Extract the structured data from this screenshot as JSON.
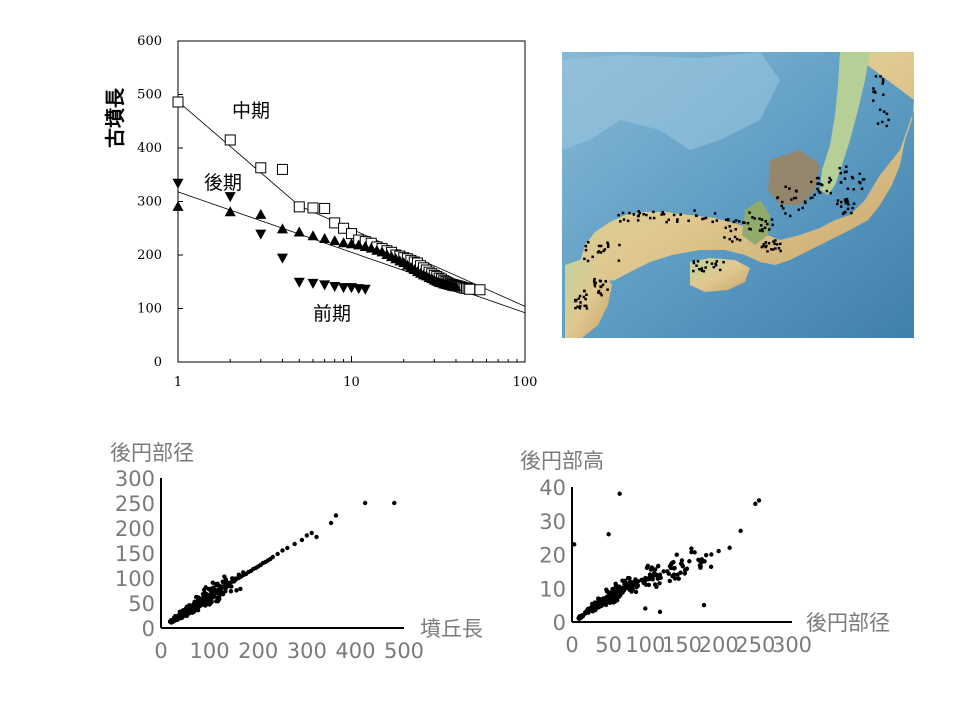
{
  "chart_data": [
    {
      "type": "scatter",
      "ylabel": "古墳長",
      "xscale": "log",
      "xlim": [
        1,
        100
      ],
      "ylim": [
        0,
        600
      ],
      "xticks": [
        "1",
        "10",
        "100"
      ],
      "yticks": [
        "0",
        "100",
        "200",
        "300",
        "400",
        "500",
        "600"
      ],
      "series": [
        {
          "name": "中期",
          "marker": "open-square",
          "x": [
            1,
            2,
            3,
            4,
            5,
            6,
            7,
            8,
            9,
            10,
            11,
            12,
            13,
            14,
            15,
            16,
            17,
            18,
            19,
            20,
            21,
            22,
            23,
            24,
            25,
            26,
            27,
            28,
            29,
            30,
            31,
            32,
            33,
            34,
            35,
            36,
            37,
            38,
            39,
            40,
            41,
            42,
            43,
            44,
            45,
            46,
            47,
            48,
            55
          ],
          "y": [
            486,
            415,
            363,
            360,
            290,
            288,
            287,
            260,
            250,
            240,
            228,
            225,
            222,
            215,
            212,
            208,
            205,
            200,
            198,
            195,
            193,
            190,
            187,
            185,
            180,
            176,
            172,
            168,
            165,
            162,
            160,
            157,
            155,
            152,
            150,
            148,
            146,
            145,
            144,
            143,
            142,
            141,
            140,
            139,
            138,
            138,
            137,
            136,
            135
          ],
          "trend": {
            "x": [
              1,
              5,
              100
            ],
            "y": [
              487,
              292,
              104
            ]
          }
        },
        {
          "name": "後期",
          "marker": "filled-triangle-up",
          "x": [
            1,
            2,
            3,
            4,
            5,
            6,
            7,
            8,
            9,
            10,
            11,
            12,
            13,
            14,
            15,
            16,
            17,
            18,
            19,
            20,
            21,
            22,
            23,
            24,
            25,
            26,
            27,
            28,
            29,
            30,
            31,
            32,
            33,
            34,
            35,
            36,
            37,
            38,
            39,
            40
          ],
          "y": [
            290,
            280,
            275,
            248,
            242,
            235,
            230,
            226,
            222,
            220,
            218,
            215,
            212,
            208,
            205,
            200,
            196,
            192,
            188,
            185,
            180,
            176,
            172,
            168,
            165,
            162,
            160,
            157,
            155,
            152,
            150,
            148,
            147,
            145,
            144,
            143,
            142,
            141,
            140,
            140
          ],
          "trend": {
            "x": [
              1,
              100
            ],
            "y": [
              318,
              92
            ]
          }
        },
        {
          "name": "前期",
          "marker": "filled-triangle-down",
          "x": [
            1,
            2,
            3,
            4,
            5,
            6,
            7,
            8,
            9,
            10,
            11,
            12
          ],
          "y": [
            335,
            310,
            240,
            195,
            150,
            148,
            145,
            142,
            140,
            140,
            138,
            137
          ]
        }
      ]
    },
    {
      "type": "scatter",
      "xlabel": "墳丘長",
      "ylabel": "後円部径",
      "xlim": [
        0,
        500
      ],
      "ylim": [
        0,
        300
      ],
      "xticks": [
        "0",
        "100",
        "200",
        "300",
        "400",
        "500"
      ],
      "yticks": [
        "0",
        "50",
        "100",
        "150",
        "200",
        "250",
        "300"
      ],
      "series": [
        {
          "x": [
            20,
            25,
            30,
            32,
            35,
            38,
            40,
            42,
            45,
            48,
            50,
            52,
            55,
            58,
            60,
            62,
            65,
            68,
            70,
            72,
            75,
            78,
            80,
            82,
            85,
            88,
            90,
            92,
            95,
            98,
            100,
            103,
            105,
            108,
            110,
            112,
            115,
            118,
            120,
            125,
            130,
            135,
            140,
            145,
            150,
            155,
            160,
            165,
            170,
            175,
            180,
            185,
            190,
            195,
            200,
            205,
            210,
            215,
            220,
            225,
            230,
            240,
            250,
            260,
            275,
            290,
            300,
            310,
            320,
            350,
            360,
            420,
            480
          ],
          "y": [
            12,
            15,
            18,
            20,
            22,
            24,
            25,
            27,
            28,
            30,
            32,
            33,
            35,
            37,
            38,
            40,
            42,
            44,
            45,
            46,
            48,
            50,
            52,
            53,
            55,
            57,
            58,
            60,
            62,
            63,
            65,
            67,
            68,
            70,
            72,
            73,
            75,
            76,
            78,
            80,
            83,
            86,
            90,
            92,
            95,
            98,
            100,
            103,
            106,
            108,
            112,
            114,
            118,
            120,
            123,
            126,
            130,
            132,
            135,
            138,
            142,
            148,
            155,
            160,
            168,
            176,
            185,
            190,
            182,
            210,
            225,
            250,
            250
          ]
        }
      ]
    },
    {
      "type": "scatter",
      "xlabel": "後円部径",
      "ylabel": "後円部高",
      "xlim": [
        0,
        300
      ],
      "ylim": [
        0,
        40
      ],
      "xticks": [
        "0",
        "50",
        "100",
        "150",
        "200",
        "250",
        "300"
      ],
      "yticks": [
        "0",
        "10",
        "20",
        "30",
        "40"
      ],
      "series": [
        {
          "x": [
            10,
            12,
            15,
            18,
            20,
            22,
            25,
            28,
            30,
            32,
            35,
            38,
            40,
            42,
            45,
            48,
            50,
            52,
            55,
            58,
            60,
            62,
            65,
            68,
            70,
            72,
            75,
            78,
            80,
            85,
            90,
            95,
            100,
            105,
            110,
            115,
            120,
            125,
            130,
            135,
            140,
            150,
            160,
            175,
            190,
            200,
            215,
            230,
            250,
            255,
            65,
            50,
            3,
            100,
            120,
            180
          ],
          "y": [
            1,
            1.5,
            2,
            2.5,
            3,
            3,
            3.5,
            4,
            4.5,
            5,
            5,
            5.5,
            6,
            6,
            6.5,
            7,
            7,
            7.5,
            8,
            8,
            8.5,
            9,
            9,
            9.5,
            10,
            10,
            10.5,
            11,
            11,
            11.5,
            12,
            12.5,
            13,
            13,
            13.5,
            14,
            14,
            15,
            15,
            16,
            16,
            17,
            18,
            18,
            20,
            21,
            22,
            27,
            35,
            36,
            38,
            26,
            23,
            4,
            3,
            5
          ]
        }
      ]
    }
  ],
  "map": {
    "bg_sea": "#5f9ec4",
    "bg_land": "#d9c28f"
  }
}
